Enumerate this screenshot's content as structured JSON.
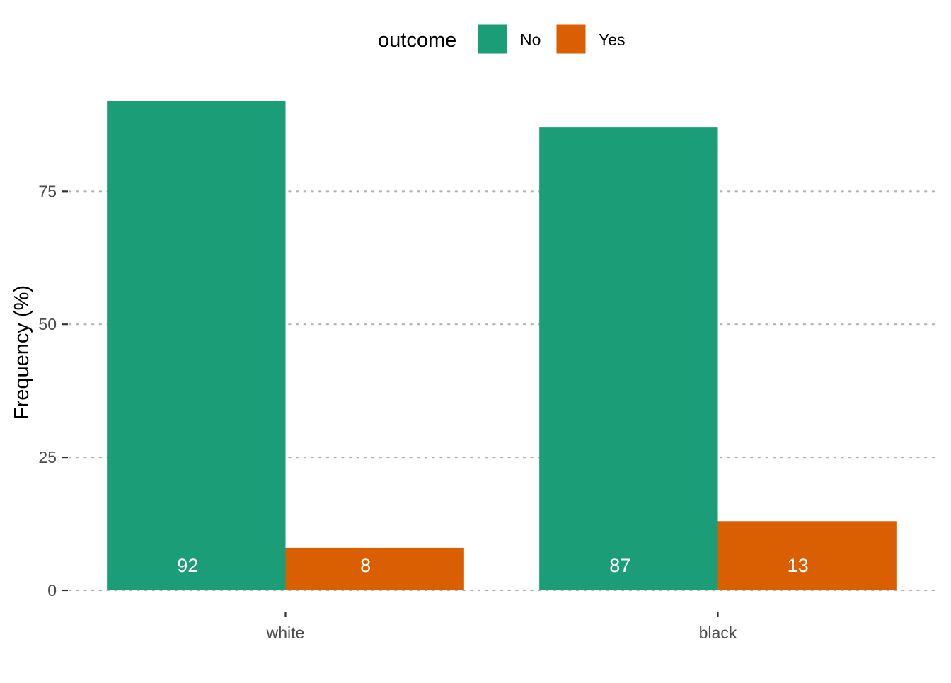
{
  "chart_data": {
    "type": "bar",
    "categories": [
      "white",
      "black"
    ],
    "series": [
      {
        "name": "No",
        "values": [
          92,
          87
        ],
        "color": "#1B9E77"
      },
      {
        "name": "Yes",
        "values": [
          8,
          13
        ],
        "color": "#D95F02"
      }
    ],
    "data_labels": [
      [
        92,
        87
      ],
      [
        8,
        13
      ]
    ],
    "xlabel": "",
    "ylabel": "Frequency (%)",
    "ylim": [
      0,
      95
    ],
    "yticks": [
      0,
      25,
      50,
      75
    ],
    "grid": "horizontal-dotted",
    "legend": {
      "title": "outcome",
      "placement": "top",
      "entries": [
        "No",
        "Yes"
      ]
    }
  }
}
